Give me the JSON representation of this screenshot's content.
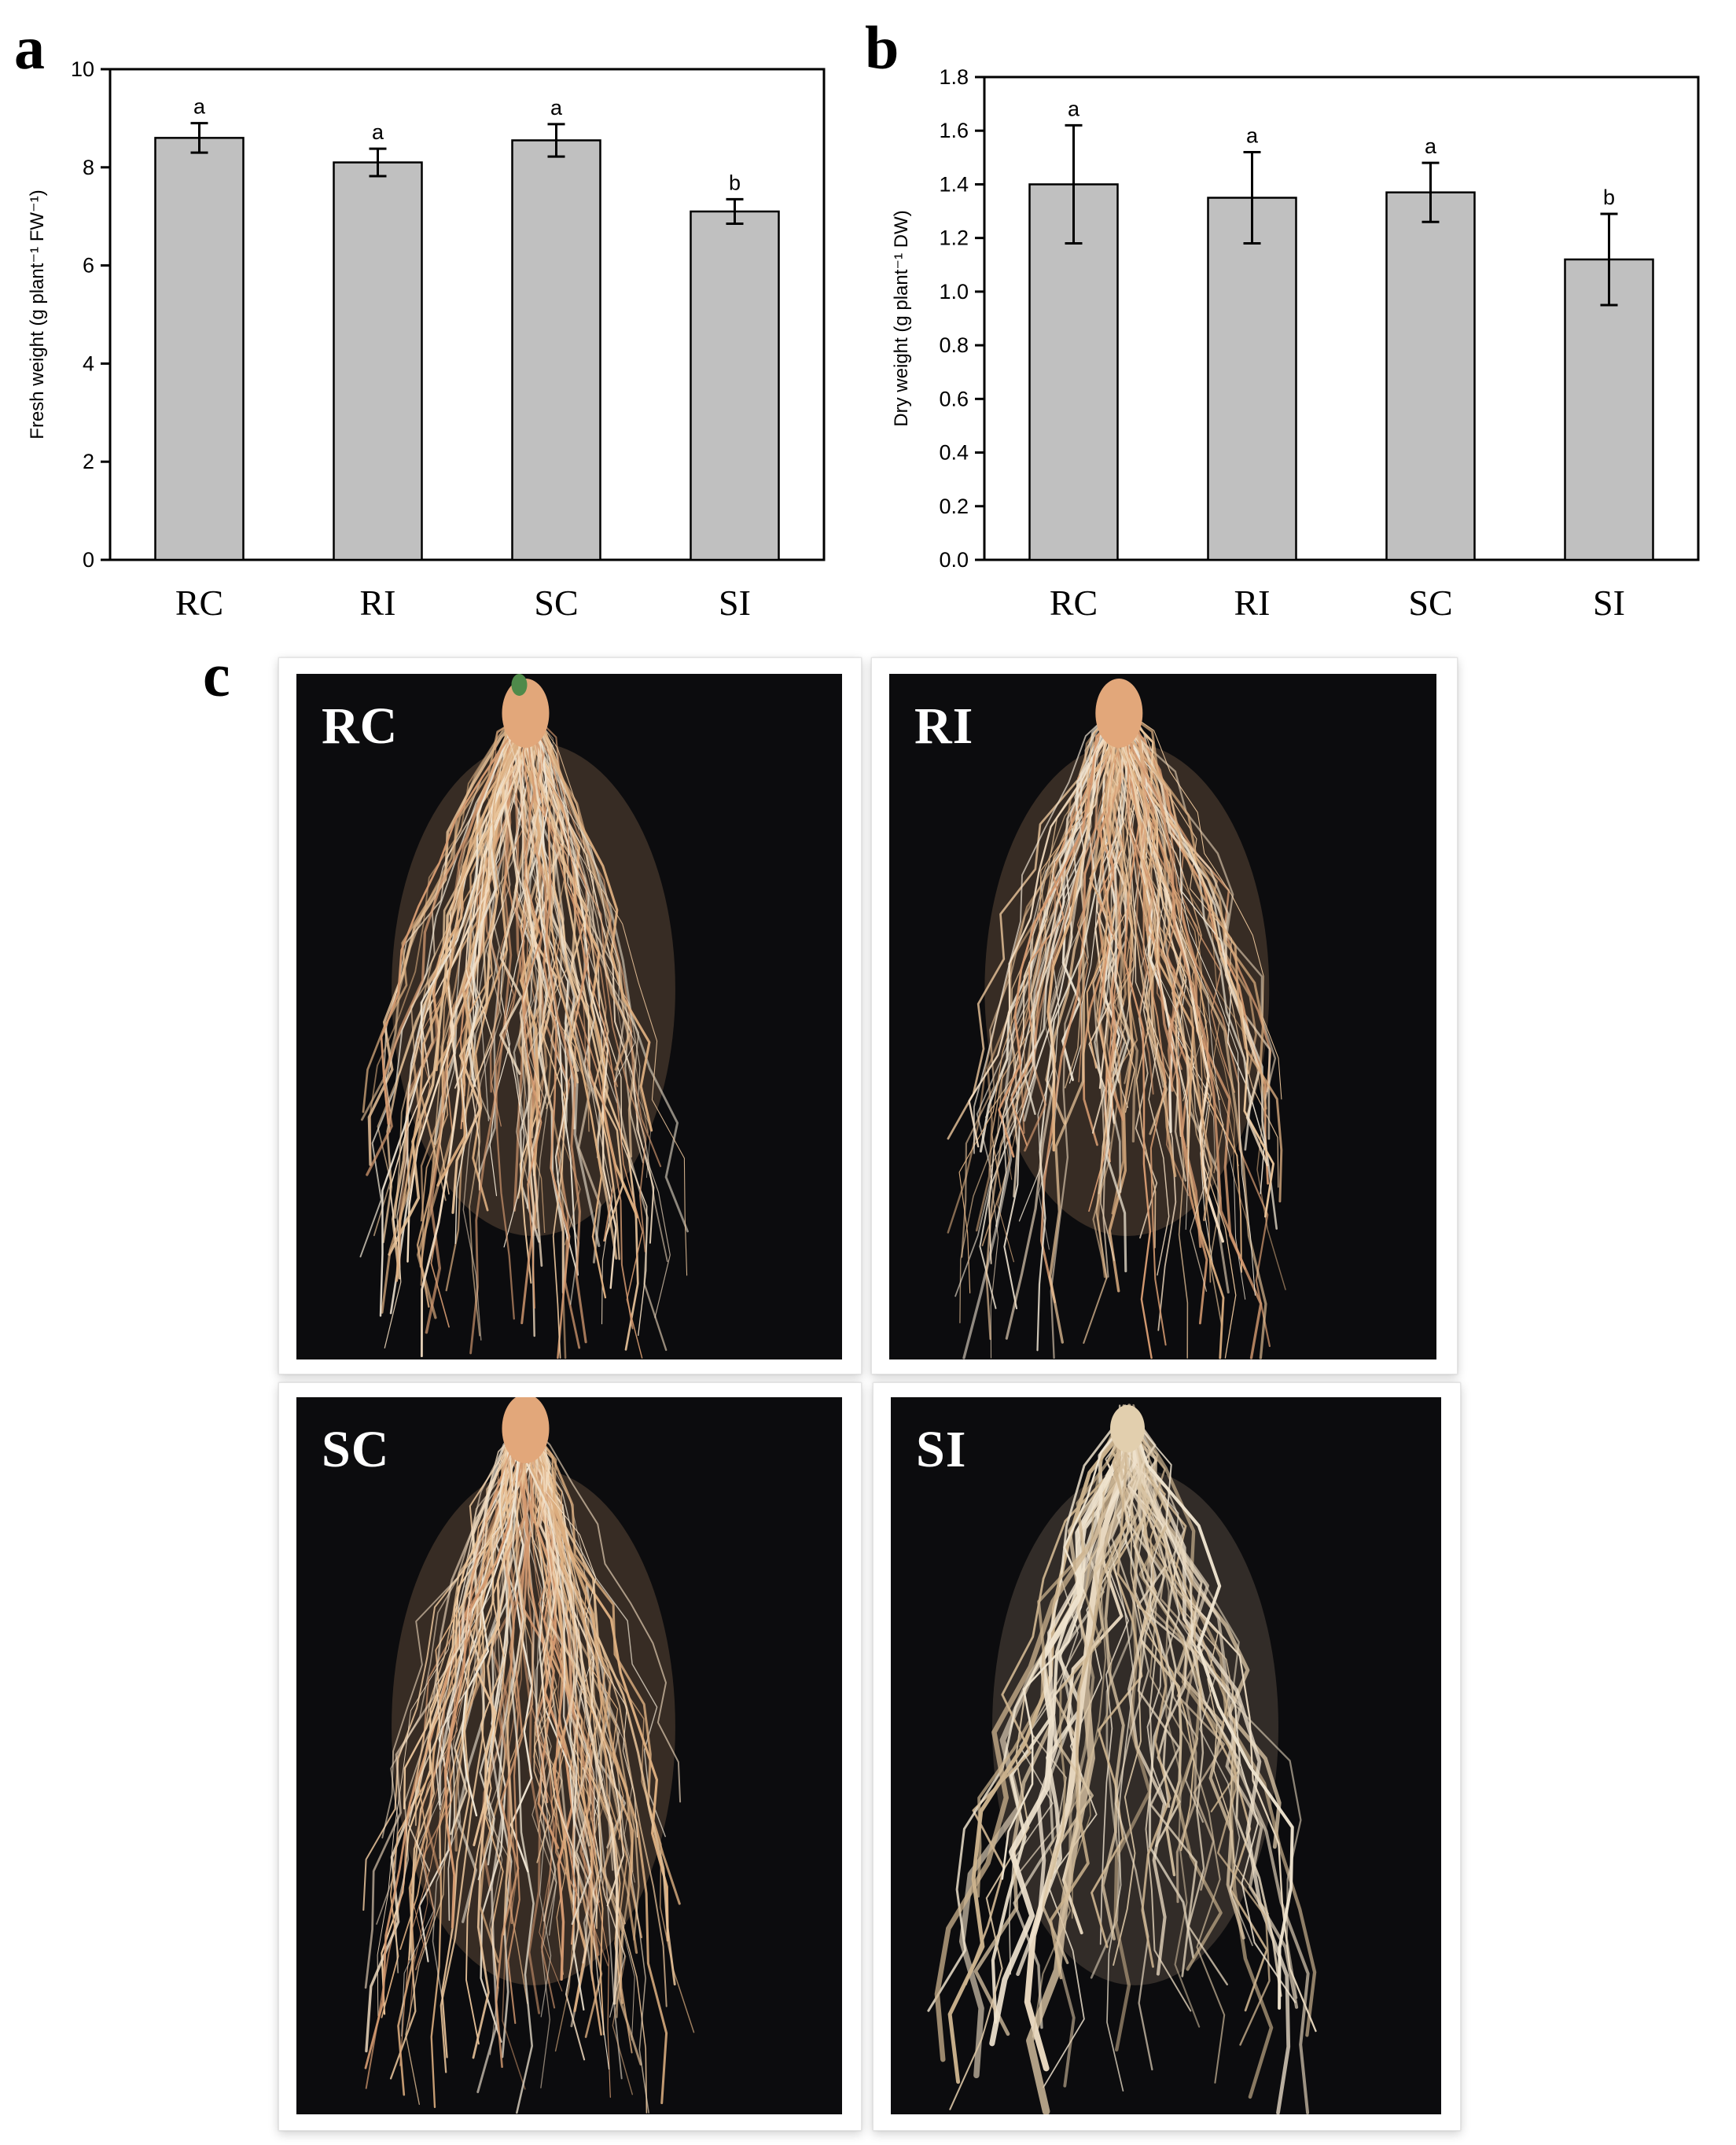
{
  "panels": {
    "a": "a",
    "b": "b",
    "c": "c"
  },
  "chart_data": [
    {
      "type": "bar",
      "panel": "a",
      "categories": [
        "RC",
        "RI",
        "SC",
        "SI"
      ],
      "values": [
        8.6,
        8.1,
        8.55,
        7.1
      ],
      "errors": [
        0.3,
        0.28,
        0.33,
        0.25
      ],
      "significance": [
        "a",
        "a",
        "a",
        "b"
      ],
      "title": "",
      "xlabel": "",
      "ylabel": "Fresh weight (g plant⁻¹ FW⁻¹)",
      "ylim": [
        0,
        10
      ],
      "yticks": [
        "0",
        "2",
        "4",
        "6",
        "8",
        "10"
      ],
      "bar_color": "#c0c0c0",
      "grid": false,
      "legend": "none"
    },
    {
      "type": "bar",
      "panel": "b",
      "categories": [
        "RC",
        "RI",
        "SC",
        "SI"
      ],
      "values": [
        1.4,
        1.35,
        1.37,
        1.12
      ],
      "errors": [
        0.22,
        0.17,
        0.11,
        0.17
      ],
      "significance": [
        "a",
        "a",
        "a",
        "b"
      ],
      "title": "",
      "xlabel": "",
      "ylabel": "Dry weight (g plant⁻¹ DW)",
      "ylim": [
        0,
        1.8
      ],
      "yticks": [
        "0.0",
        "0.2",
        "0.4",
        "0.6",
        "0.8",
        "1.0",
        "1.2",
        "1.4",
        "1.6",
        "1.8"
      ],
      "bar_color": "#c0c0c0",
      "grid": false,
      "legend": "none"
    }
  ],
  "photos": [
    {
      "label": "RC",
      "type": "taproot"
    },
    {
      "label": "RI",
      "type": "taproot"
    },
    {
      "label": "SC",
      "type": "taproot"
    },
    {
      "label": "SI",
      "type": "thick"
    }
  ]
}
